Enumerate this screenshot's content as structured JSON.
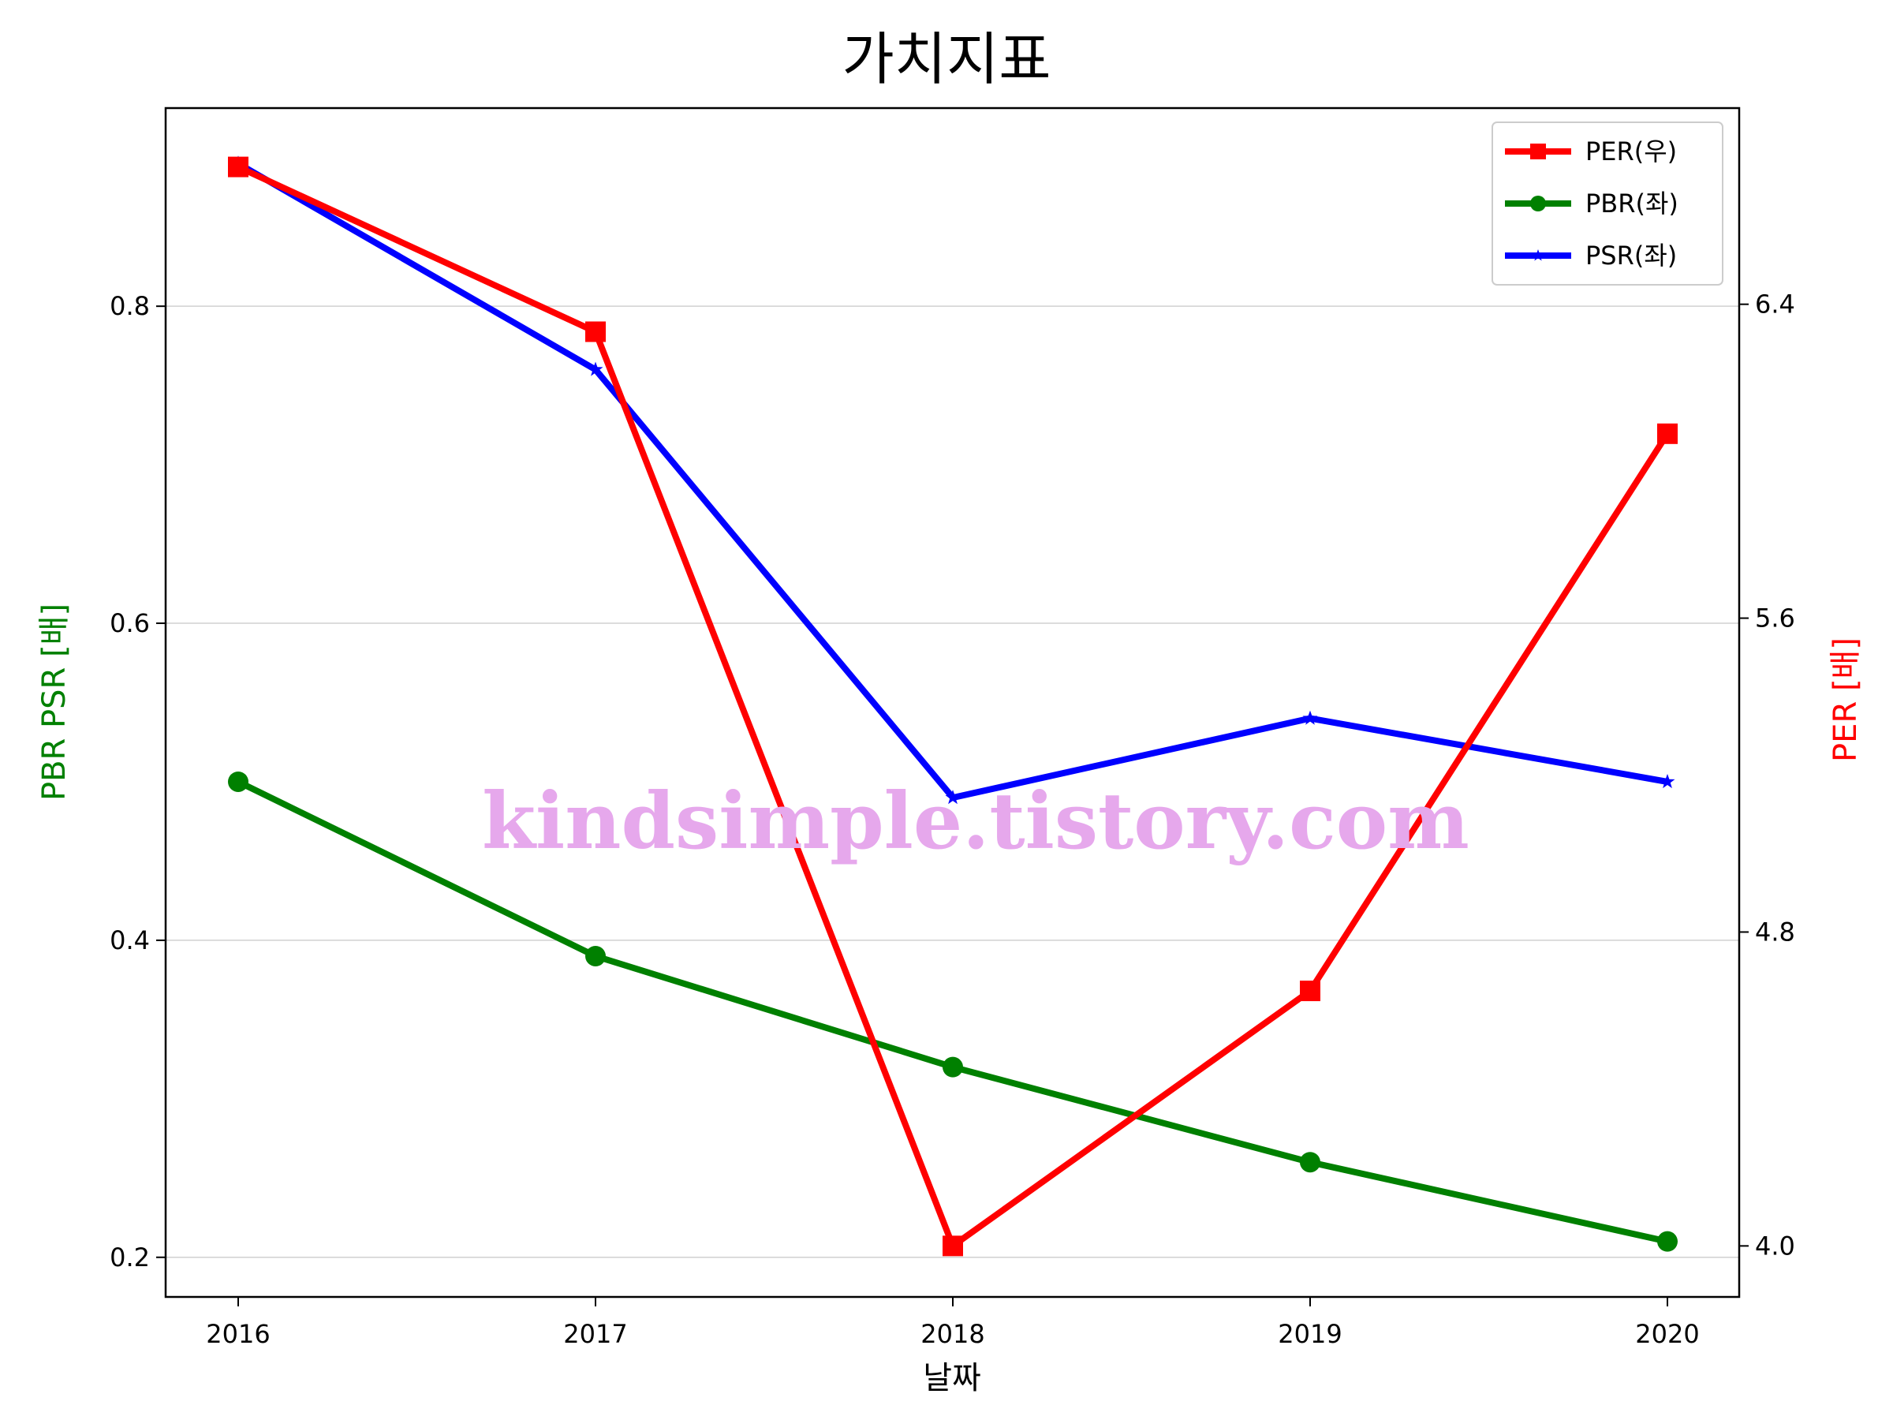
{
  "chart_data": {
    "type": "line",
    "title": "가치지표",
    "xlabel": "날짜",
    "ylabel_left": "PBR PSR [배]",
    "ylabel_right": "PER [배]",
    "x": [
      "2016",
      "2017",
      "2018",
      "2019",
      "2020"
    ],
    "left_axis": {
      "ylim": [
        0.175,
        0.925
      ],
      "ticks": [
        "0.2",
        "0.4",
        "0.6",
        "0.8"
      ],
      "tick_values": [
        0.2,
        0.4,
        0.6,
        0.8
      ],
      "label_color": "#008000"
    },
    "right_axis": {
      "ylim": [
        3.87,
        6.9
      ],
      "ticks": [
        "4.0",
        "4.8",
        "5.6",
        "6.4"
      ],
      "tick_values": [
        4.0,
        4.8,
        5.6,
        6.4
      ],
      "label_color": "#ff0000"
    },
    "series": [
      {
        "name": "PER(우)",
        "axis": "right",
        "color": "#ff0000",
        "marker": "square",
        "values": [
          6.75,
          6.33,
          4.0,
          4.65,
          6.07
        ]
      },
      {
        "name": "PBR(좌)",
        "axis": "left",
        "color": "#008000",
        "marker": "circle",
        "values": [
          0.5,
          0.39,
          0.32,
          0.26,
          0.21
        ]
      },
      {
        "name": "PSR(좌)",
        "axis": "left",
        "color": "#0000ff",
        "marker": "star",
        "values": [
          0.89,
          0.76,
          0.49,
          0.54,
          0.5
        ]
      }
    ],
    "grid": "horizontal",
    "legend_position": "top-right",
    "watermark": "kindsimple.tistory.com"
  }
}
